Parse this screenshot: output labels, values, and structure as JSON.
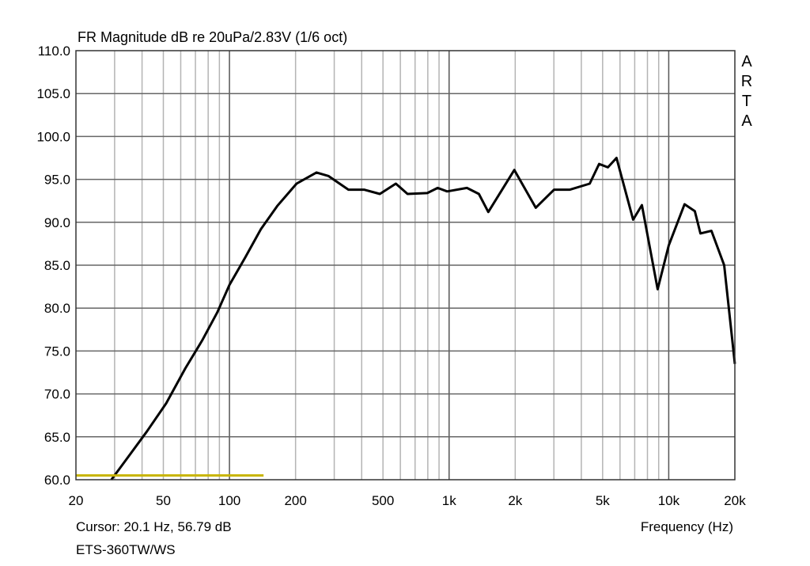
{
  "chart_data": {
    "type": "line",
    "title": "FR Magnitude dB re 20uPa/2.83V (1/6 oct)",
    "xlabel": "Frequency (Hz)",
    "ylabel": "",
    "xscale": "log",
    "xlim": [
      20,
      20000
    ],
    "ylim": [
      60,
      110
    ],
    "grid": true,
    "x_ticks": [
      {
        "value": 20,
        "label": "20"
      },
      {
        "value": 50,
        "label": "50"
      },
      {
        "value": 100,
        "label": "100"
      },
      {
        "value": 200,
        "label": "200"
      },
      {
        "value": 500,
        "label": "500"
      },
      {
        "value": 1000,
        "label": "1k"
      },
      {
        "value": 2000,
        "label": "2k"
      },
      {
        "value": 5000,
        "label": "5k"
      },
      {
        "value": 10000,
        "label": "10k"
      },
      {
        "value": 20000,
        "label": "20k"
      }
    ],
    "y_ticks": [
      "60.0",
      "65.0",
      "70.0",
      "75.0",
      "80.0",
      "85.0",
      "90.0",
      "95.0",
      "100.0",
      "105.0",
      "110.0"
    ],
    "watermark": "ARTA",
    "cursor_text": "Cursor: 20.1 Hz, 56.79 dB",
    "measurement_name": "ETS-360TW/WS",
    "series": [
      {
        "color": "#000000",
        "points": [
          [
            29,
            60.0
          ],
          [
            34,
            62.4
          ],
          [
            42,
            65.6
          ],
          [
            51.5,
            68.9
          ],
          [
            63,
            73.0
          ],
          [
            75,
            76.2
          ],
          [
            88,
            79.5
          ],
          [
            100,
            82.7
          ],
          [
            118,
            85.9
          ],
          [
            139,
            89.2
          ],
          [
            165,
            91.9
          ],
          [
            202,
            94.5
          ],
          [
            249,
            95.8
          ],
          [
            282,
            95.4
          ],
          [
            348,
            93.8
          ],
          [
            410,
            93.8
          ],
          [
            484,
            93.3
          ],
          [
            572,
            94.5
          ],
          [
            647,
            93.3
          ],
          [
            796,
            93.4
          ],
          [
            887,
            94.0
          ],
          [
            980,
            93.6
          ],
          [
            1206,
            94.0
          ],
          [
            1366,
            93.3
          ],
          [
            1508,
            91.2
          ],
          [
            1982,
            96.1
          ],
          [
            2480,
            91.7
          ],
          [
            3007,
            93.8
          ],
          [
            3549,
            93.8
          ],
          [
            4366,
            94.5
          ],
          [
            4820,
            96.8
          ],
          [
            5284,
            96.4
          ],
          [
            5786,
            97.5
          ],
          [
            6886,
            90.3
          ],
          [
            7550,
            92.0
          ],
          [
            8906,
            82.2
          ],
          [
            10000,
            87.3
          ],
          [
            11800,
            92.1
          ],
          [
            13150,
            91.3
          ],
          [
            13940,
            88.7
          ],
          [
            15650,
            89.0
          ],
          [
            17880,
            85.0
          ],
          [
            20000,
            73.5
          ]
        ]
      },
      {
        "color": "#c8b400",
        "points": [
          [
            20,
            60.5
          ],
          [
            143,
            60.5
          ]
        ]
      }
    ]
  }
}
